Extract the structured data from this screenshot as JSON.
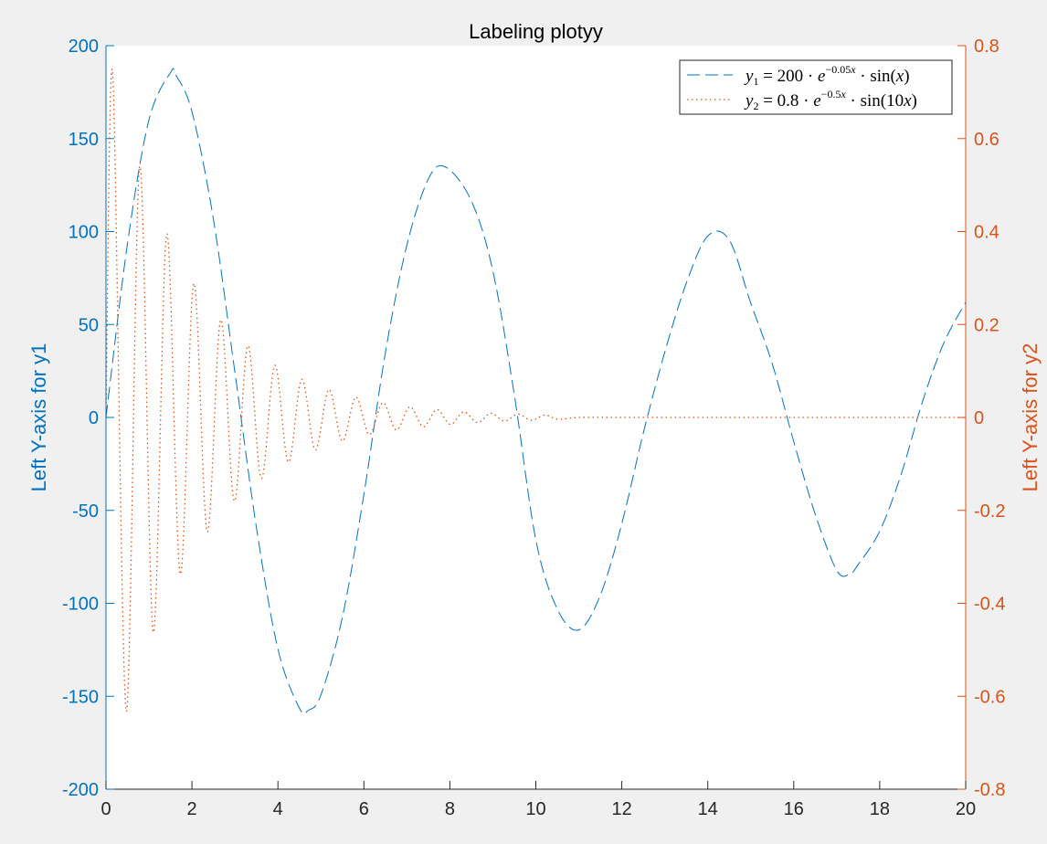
{
  "chart_data": {
    "type": "line",
    "title": "Labeling plotyy",
    "xlabel": "",
    "xlim": [
      0,
      20
    ],
    "xticks": [
      0,
      2,
      4,
      6,
      8,
      10,
      12,
      14,
      16,
      18,
      20
    ],
    "grid": false,
    "legend_position": "top-right",
    "colors": {
      "left_axis": "#0072bd",
      "right_axis": "#d95319",
      "y1_line": "#0072bd",
      "y2_line": "#d95319",
      "axes_bg": "#ffffff",
      "figure_bg": "#f0f0f0"
    },
    "left_axis": {
      "label": "Left Y-axis for y1",
      "ylim": [
        -200,
        200
      ],
      "ticks": [
        -200,
        -150,
        -100,
        -50,
        0,
        50,
        100,
        150,
        200
      ],
      "tick_labels": [
        "-200",
        "-150",
        "-100",
        "-50",
        "0",
        "50",
        "100",
        "150",
        "200"
      ]
    },
    "right_axis": {
      "label": "Left Y-axis for y2",
      "ylim": [
        -0.8,
        0.8
      ],
      "ticks": [
        -0.8,
        -0.6,
        -0.4,
        -0.2,
        0,
        0.2,
        0.4,
        0.6,
        0.8
      ],
      "tick_labels": [
        "-0.8",
        "-0.6",
        "-0.4",
        "-0.2",
        "0",
        "0.2",
        "0.4",
        "0.6",
        "0.8"
      ]
    },
    "series": [
      {
        "name": "y1 = 200 · e^(-0.05x) · sin(x)",
        "axis": "left",
        "style": "dashed",
        "x": [
          0,
          0.5,
          1,
          1.5,
          1.62,
          2,
          2.5,
          3,
          3.5,
          4,
          4.5,
          4.71,
          5,
          5.5,
          6,
          6.5,
          7,
          7.5,
          7.9,
          8.5,
          9,
          9.5,
          10,
          10.5,
          11,
          11.5,
          12,
          12.5,
          13,
          13.5,
          14,
          14.5,
          15,
          15.5,
          16,
          16.5,
          17,
          17.3,
          17.5,
          18,
          18.5,
          19,
          19.5,
          20
        ],
        "y": [
          0,
          93.5,
          160.1,
          185.5,
          184.3,
          164.5,
          106.5,
          24.2,
          -59.2,
          -124.6,
          -156.4,
          -157.5,
          -149.3,
          -107.5,
          -41.4,
          34.8,
          92.7,
          128.3,
          134.7,
          116.5,
          78.8,
          12.1,
          -65.9,
          -103.1,
          -114.3,
          -95.6,
          -57.2,
          -8.4,
          35.1,
          72.2,
          97.6,
          95.4,
          61.5,
          28.9,
          -13.0,
          -52.1,
          -82.3,
          -84.3,
          -79.1,
          -61.2,
          -30.5,
          8.9,
          40.5,
          61.9
        ]
      },
      {
        "name": "y2 = 0.8 · e^(-0.5x) · sin(10x)",
        "axis": "right",
        "style": "dotted",
        "x": [
          0,
          0.157,
          0.471,
          0.785,
          1.1,
          1.414,
          1.728,
          2.042,
          2.356,
          2.67,
          2.985,
          3.299,
          3.613,
          3.927,
          4.241,
          4.555,
          4.869,
          5.184,
          5.498,
          5.812,
          6.126,
          6.44,
          6.754,
          7.069,
          7.383,
          7.697,
          8.011,
          8.325,
          8.639,
          8.954,
          9.268,
          9.582,
          9.896,
          10.21,
          10.525,
          11.0,
          12.0,
          14.0,
          16.0,
          18.0,
          20.0
        ],
        "y": [
          0,
          0.739,
          -0.632,
          0.54,
          -0.462,
          0.395,
          -0.337,
          0.288,
          -0.246,
          0.21,
          -0.18,
          0.154,
          -0.131,
          0.112,
          -0.096,
          0.082,
          -0.07,
          0.06,
          -0.051,
          0.044,
          -0.037,
          0.032,
          -0.027,
          0.023,
          -0.02,
          0.017,
          -0.015,
          0.012,
          -0.011,
          0.009,
          -0.008,
          0.007,
          -0.006,
          0.005,
          -0.004,
          0.0,
          0.0,
          0.0,
          0.0,
          0.0,
          0.0
        ]
      }
    ]
  }
}
